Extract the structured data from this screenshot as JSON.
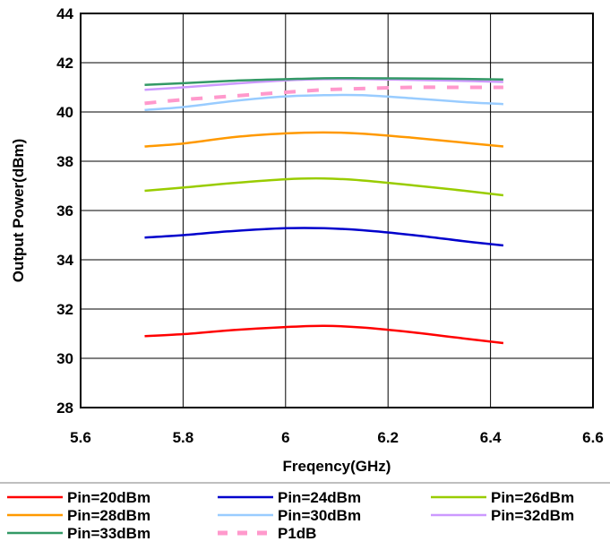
{
  "chart_data": {
    "type": "line",
    "title": "",
    "xlabel": "Freqency(GHz)",
    "ylabel": "Output Power(dBm)",
    "xlim": [
      5.6,
      6.6
    ],
    "ylim": [
      28,
      44
    ],
    "xticks": [
      5.6,
      5.8,
      6,
      6.2,
      6.4,
      6.6
    ],
    "xtick_labels": [
      "5.6",
      "5.8",
      "6",
      "6.2",
      "6.4",
      "6.6"
    ],
    "yticks": [
      28,
      30,
      32,
      34,
      36,
      38,
      40,
      42,
      44
    ],
    "ytick_labels": [
      "28",
      "30",
      "32",
      "34",
      "36",
      "38",
      "40",
      "42",
      "44"
    ],
    "grid": true,
    "legend_position": "bottom",
    "x": [
      5.725,
      5.8,
      5.9,
      6.0,
      6.075,
      6.15,
      6.25,
      6.35,
      6.425
    ],
    "series": [
      {
        "name": "Pin=20dBm",
        "color": "#ff0000",
        "dashed": false,
        "values": [
          30.9,
          30.98,
          31.15,
          31.27,
          31.32,
          31.25,
          31.05,
          30.8,
          30.62
        ]
      },
      {
        "name": "Pin=24dBm",
        "color": "#0000cc",
        "dashed": false,
        "values": [
          34.9,
          35.0,
          35.17,
          35.28,
          35.28,
          35.2,
          35.0,
          34.75,
          34.58
        ]
      },
      {
        "name": "Pin=26dBm",
        "color": "#99cc00",
        "dashed": false,
        "values": [
          36.8,
          36.93,
          37.12,
          37.27,
          37.3,
          37.22,
          37.02,
          36.8,
          36.62
        ]
      },
      {
        "name": "Pin=28dBm",
        "color": "#ff9900",
        "dashed": false,
        "values": [
          38.6,
          38.72,
          38.98,
          39.13,
          39.17,
          39.12,
          38.95,
          38.75,
          38.6
        ]
      },
      {
        "name": "Pin=30dBm",
        "color": "#99ccff",
        "dashed": false,
        "values": [
          40.08,
          40.2,
          40.45,
          40.63,
          40.68,
          40.68,
          40.55,
          40.4,
          40.32
        ]
      },
      {
        "name": "Pin=32dBm",
        "color": "#cc99ff",
        "dashed": false,
        "values": [
          40.9,
          41.0,
          41.15,
          41.28,
          41.33,
          41.33,
          41.3,
          41.26,
          41.22
        ]
      },
      {
        "name": "Pin=33dBm",
        "color": "#339966",
        "dashed": false,
        "values": [
          41.1,
          41.17,
          41.27,
          41.33,
          41.37,
          41.37,
          41.36,
          41.34,
          41.32
        ]
      },
      {
        "name": "P1dB",
        "color": "#ff99cc",
        "dashed": true,
        "values": [
          40.35,
          40.5,
          40.65,
          40.8,
          40.9,
          40.95,
          41.0,
          41.0,
          41.0
        ]
      }
    ]
  }
}
